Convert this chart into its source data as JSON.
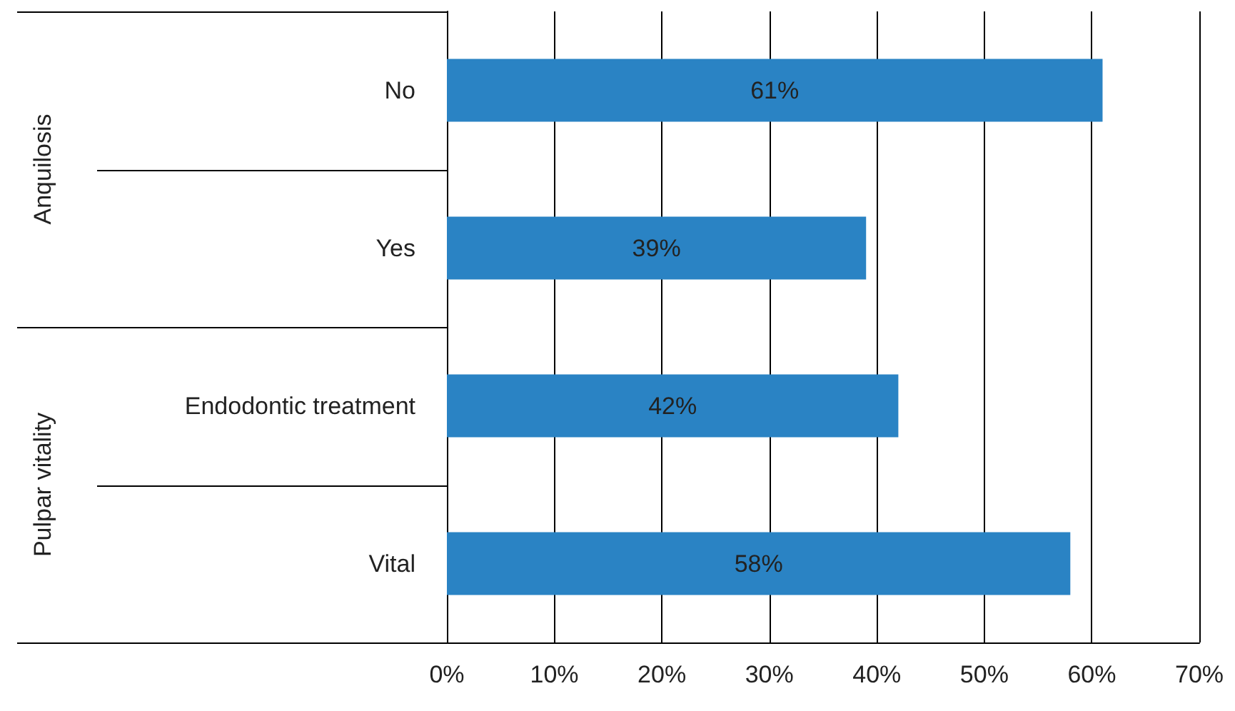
{
  "chart_data": {
    "type": "bar",
    "orientation": "horizontal",
    "categories": [
      "No",
      "Yes",
      "Endodontic treatment",
      "Vital"
    ],
    "values": [
      61,
      39,
      42,
      58
    ],
    "color": "#2a83c4",
    "value_labels": [
      "61%",
      "39%",
      "42%",
      "58%"
    ],
    "annotations": [
      "Anquilosis",
      "Pulpar vitality"
    ],
    "xlim": [
      0,
      70
    ],
    "xticks": [
      {
        "value": 0,
        "label": "0%"
      },
      {
        "value": 10,
        "label": "10%"
      },
      {
        "value": 20,
        "label": "20%"
      },
      {
        "value": 30,
        "label": "30%"
      },
      {
        "value": 40,
        "label": "40%"
      },
      {
        "value": 50,
        "label": "50%"
      },
      {
        "value": 60,
        "label": "60%"
      },
      {
        "value": 70,
        "label": "70%"
      }
    ],
    "grid": "x"
  }
}
